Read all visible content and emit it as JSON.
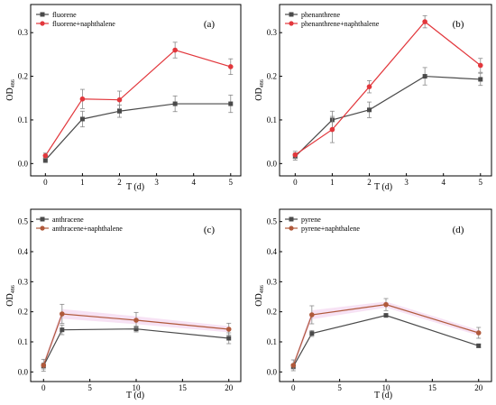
{
  "colors": {
    "series1": "#4a4a4a",
    "series2_red": "#e2373c",
    "series2_brown": "#b0593b",
    "errorbar": "#888888",
    "shade": "#f3d6ef"
  },
  "chart_data": [
    {
      "type": "line",
      "panel_label": "(a)",
      "xlabel": "T (d)",
      "ylabel_main": "OD",
      "ylabel_sub": "486",
      "xlim": [
        -0.3,
        5.2
      ],
      "ylim": [
        -0.02,
        0.35
      ],
      "xticks": [
        0,
        1,
        2,
        3,
        4,
        5
      ],
      "yticks": [
        0.0,
        0.1,
        0.2,
        0.3
      ],
      "ytick_labels": [
        "0.0",
        "0.1",
        "0.2",
        "0.3"
      ],
      "legend_position": "top-left",
      "x": [
        0,
        1,
        2,
        3.5,
        5
      ],
      "series": [
        {
          "name": "fluorene",
          "color": "#4a4a4a",
          "values": [
            0.008,
            0.102,
            0.12,
            0.137,
            0.137
          ],
          "errors": [
            0.006,
            0.018,
            0.014,
            0.018,
            0.02
          ]
        },
        {
          "name": "fluorene+naphthalene",
          "color": "#e2373c",
          "values": [
            0.018,
            0.148,
            0.146,
            0.26,
            0.222
          ],
          "errors": [
            0.006,
            0.022,
            0.02,
            0.018,
            0.018
          ]
        }
      ]
    },
    {
      "type": "line",
      "panel_label": "(b)",
      "xlabel": "T (d)",
      "ylabel_main": "OD",
      "ylabel_sub": "486",
      "xlim": [
        -0.3,
        5.2
      ],
      "ylim": [
        -0.02,
        0.35
      ],
      "xticks": [
        0,
        1,
        2,
        3,
        4,
        5
      ],
      "yticks": [
        0.0,
        0.1,
        0.2,
        0.3
      ],
      "ytick_labels": [
        "0.0",
        "0.1",
        "0.2",
        "0.3"
      ],
      "legend_position": "top-left",
      "x": [
        0,
        1,
        2,
        3.5,
        5
      ],
      "series": [
        {
          "name": "phenanthrene",
          "color": "#4a4a4a",
          "values": [
            0.016,
            0.1,
            0.123,
            0.2,
            0.193
          ],
          "errors": [
            0.008,
            0.02,
            0.018,
            0.02,
            0.014
          ]
        },
        {
          "name": "phenanthrene+naphthalene",
          "color": "#e2373c",
          "values": [
            0.02,
            0.078,
            0.176,
            0.325,
            0.225
          ],
          "errors": [
            0.008,
            0.03,
            0.014,
            0.014,
            0.016
          ]
        }
      ]
    },
    {
      "type": "line",
      "panel_label": "(c)",
      "xlabel": "T  (d)",
      "ylabel_main": "OD",
      "ylabel_sub": "486",
      "xlim": [
        -1,
        21
      ],
      "ylim": [
        -0.02,
        0.52
      ],
      "xticks": [
        0,
        5,
        10,
        15,
        20
      ],
      "yticks": [
        0.0,
        0.1,
        0.2,
        0.3,
        0.4,
        0.5
      ],
      "ytick_labels": [
        "0.0",
        "0.1",
        "0.2",
        "0.3",
        "0.4",
        "0.5"
      ],
      "legend_position": "top-left",
      "x": [
        0,
        2,
        10,
        20
      ],
      "series": [
        {
          "name": "anthracene",
          "color": "#4a4a4a",
          "values": [
            0.02,
            0.14,
            0.143,
            0.112
          ],
          "errors": [
            0.01,
            0.016,
            0.01,
            0.018
          ]
        },
        {
          "name": "anthracene+naphthalene",
          "color": "#b0593b",
          "values": [
            0.022,
            0.193,
            0.172,
            0.142
          ],
          "errors": [
            0.02,
            0.032,
            0.026,
            0.02
          ]
        }
      ]
    },
    {
      "type": "line",
      "panel_label": "(d)",
      "xlabel": "T  (d)",
      "ylabel_main": "OD",
      "ylabel_sub": "486",
      "xlim": [
        -1,
        21
      ],
      "ylim": [
        -0.02,
        0.52
      ],
      "xticks": [
        0,
        5,
        10,
        15,
        20
      ],
      "yticks": [
        0.0,
        0.1,
        0.2,
        0.3,
        0.4,
        0.5
      ],
      "ytick_labels": [
        "0.0",
        "0.1",
        "0.2",
        "0.3",
        "0.4",
        "0.5"
      ],
      "legend_position": "top-left",
      "x": [
        0,
        2,
        10,
        20
      ],
      "series": [
        {
          "name": "pyrene",
          "color": "#4a4a4a",
          "values": [
            0.018,
            0.128,
            0.188,
            0.087
          ],
          "errors": [
            0.008,
            0.01,
            0.006,
            0.006
          ]
        },
        {
          "name": "pyrene+naphthalene",
          "color": "#b0593b",
          "values": [
            0.022,
            0.19,
            0.224,
            0.13
          ],
          "errors": [
            0.018,
            0.03,
            0.02,
            0.018
          ]
        }
      ]
    }
  ]
}
